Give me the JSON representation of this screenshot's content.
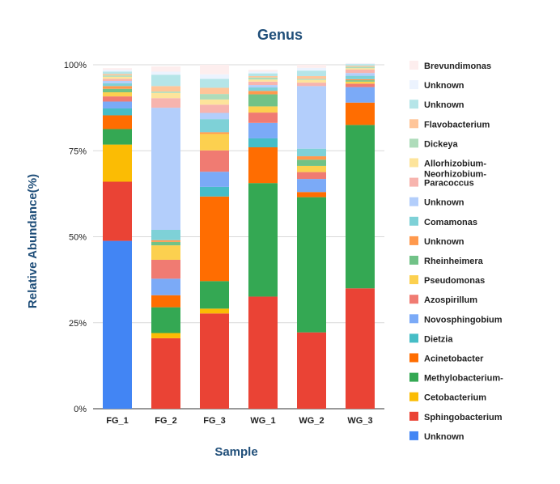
{
  "chart_data": {
    "type": "bar",
    "stacked": true,
    "title": "Genus",
    "xlabel": "Sample",
    "ylabel": "Relative Abundance(%)",
    "ylim": [
      0,
      100
    ],
    "yticks": [
      "0%",
      "25%",
      "50%",
      "75%",
      "100%"
    ],
    "ytick_values": [
      0,
      25,
      50,
      75,
      100
    ],
    "grid": true,
    "legend_position": "right",
    "categories": [
      "FG_1",
      "FG_2",
      "FG_3",
      "WG_1",
      "WG_2",
      "WG_3"
    ],
    "series": [
      {
        "name": "Unknown",
        "color": "#4285f4",
        "values": [
          48.8,
          0,
          0,
          0,
          0,
          0
        ]
      },
      {
        "name": "Sphingobacterium",
        "color": "#ea4335",
        "values": [
          17.2,
          20.5,
          27.7,
          32.6,
          22.2,
          35.0
        ]
      },
      {
        "name": "Cetobacterium",
        "color": "#fbbc04",
        "values": [
          10.8,
          1.5,
          1.4,
          0,
          0,
          0
        ]
      },
      {
        "name": "Methylobacterium-",
        "color": "#34a853",
        "values": [
          4.5,
          7.5,
          8.0,
          33.0,
          39.3,
          47.5
        ]
      },
      {
        "name": "Acinetobacter",
        "color": "#ff6d01",
        "values": [
          4.0,
          3.5,
          24.6,
          10.4,
          1.5,
          6.5
        ]
      },
      {
        "name": "Dietzia",
        "color": "#46bdc6",
        "values": [
          2.0,
          0,
          2.8,
          2.6,
          0,
          0
        ]
      },
      {
        "name": "Novosphingobium",
        "color": "#7baaf7",
        "values": [
          2.0,
          4.8,
          4.4,
          4.5,
          3.8,
          4.5
        ]
      },
      {
        "name": "Azospirillum",
        "color": "#f07b72",
        "values": [
          1.5,
          5.5,
          6.2,
          3.0,
          2.0,
          1.0
        ]
      },
      {
        "name": "Pseudomonas",
        "color": "#fcd04f",
        "values": [
          1.2,
          4.2,
          4.8,
          1.8,
          1.8,
          0.6
        ]
      },
      {
        "name": "Rheinheimera",
        "color": "#71c287",
        "values": [
          1.0,
          1.0,
          0,
          3.5,
          1.8,
          0.4
        ]
      },
      {
        "name": "Unknown",
        "color": "#ff994d",
        "values": [
          0.8,
          0.5,
          0.5,
          1.0,
          1.0,
          0.3
        ]
      },
      {
        "name": "Comamonas",
        "color": "#7ed1d7",
        "values": [
          0.8,
          3.0,
          3.8,
          1.0,
          2.2,
          1.0
        ]
      },
      {
        "name": "Unknown",
        "color": "#b3cefb",
        "values": [
          0.7,
          35.5,
          1.8,
          0.7,
          18.2,
          0.8
        ]
      },
      {
        "name": "Paracoccus",
        "color": "#f7b4ae",
        "values": [
          0.6,
          2.8,
          2.4,
          1.0,
          1.0,
          1.0
        ]
      },
      {
        "name": "Allorhizobium-Neorhizobium-",
        "color": "#fde49b",
        "values": [
          0.6,
          1.5,
          1.5,
          0.6,
          0.8,
          0.4
        ]
      },
      {
        "name": "Dickeya",
        "color": "#aedcba",
        "values": [
          0.4,
          0.4,
          1.6,
          0.6,
          0.3,
          0.4
        ]
      },
      {
        "name": "Flavobacterium",
        "color": "#ffc599",
        "values": [
          0.4,
          1.6,
          1.8,
          0.4,
          0.8,
          0.3
        ]
      },
      {
        "name": "Unknown",
        "color": "#b5e5e8",
        "values": [
          0.7,
          3.3,
          2.6,
          0.8,
          1.6,
          0.5
        ]
      },
      {
        "name": "Unknown",
        "color": "#ecf3fe",
        "values": [
          0.5,
          0.9,
          1.3,
          0.5,
          0.8,
          0.2
        ]
      },
      {
        "name": "Brevundimonas",
        "color": "#fdeeee",
        "values": [
          0.5,
          1.5,
          2.8,
          0.5,
          0.9,
          0.1
        ]
      }
    ]
  }
}
